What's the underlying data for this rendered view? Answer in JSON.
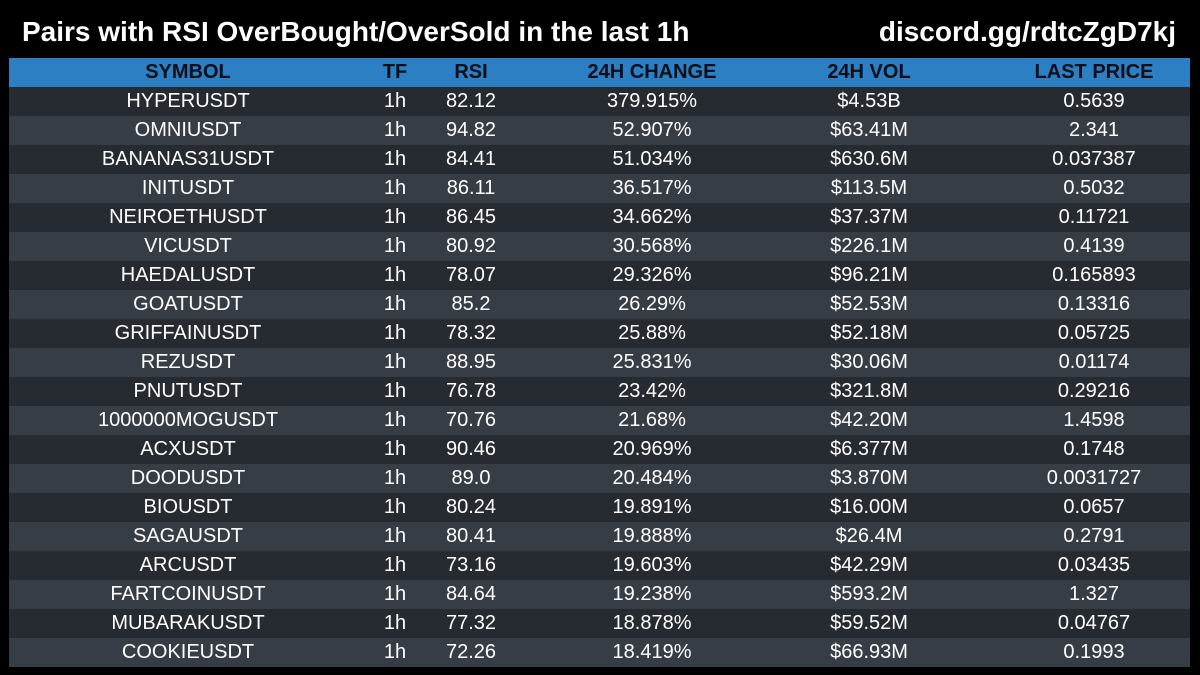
{
  "header": {
    "title": "Pairs with RSI OverBought/OverSold in the last 1h",
    "discord": "discord.gg/rdtcZgD7kj"
  },
  "table": {
    "columns": [
      "SYMBOL",
      "TF",
      "RSI",
      "24H CHANGE",
      "24H VOL",
      "LAST PRICE"
    ],
    "rows": [
      [
        "HYPERUSDT",
        "1h",
        "82.12",
        "379.915%",
        "$4.53B",
        "0.5639"
      ],
      [
        "OMNIUSDT",
        "1h",
        "94.82",
        "52.907%",
        "$63.41M",
        "2.341"
      ],
      [
        "BANANAS31USDT",
        "1h",
        "84.41",
        "51.034%",
        "$630.6M",
        "0.037387"
      ],
      [
        "INITUSDT",
        "1h",
        "86.11",
        "36.517%",
        "$113.5M",
        "0.5032"
      ],
      [
        "NEIROETHUSDT",
        "1h",
        "86.45",
        "34.662%",
        "$37.37M",
        "0.11721"
      ],
      [
        "VICUSDT",
        "1h",
        "80.92",
        "30.568%",
        "$226.1M",
        "0.4139"
      ],
      [
        "HAEDALUSDT",
        "1h",
        "78.07",
        "29.326%",
        "$96.21M",
        "0.165893"
      ],
      [
        "GOATUSDT",
        "1h",
        "85.2",
        "26.29%",
        "$52.53M",
        "0.13316"
      ],
      [
        "GRIFFAINUSDT",
        "1h",
        "78.32",
        "25.88%",
        "$52.18M",
        "0.05725"
      ],
      [
        "REZUSDT",
        "1h",
        "88.95",
        "25.831%",
        "$30.06M",
        "0.01174"
      ],
      [
        "PNUTUSDT",
        "1h",
        "76.78",
        "23.42%",
        "$321.8M",
        "0.29216"
      ],
      [
        "1000000MOGUSDT",
        "1h",
        "70.76",
        "21.68%",
        "$42.20M",
        "1.4598"
      ],
      [
        "ACXUSDT",
        "1h",
        "90.46",
        "20.969%",
        "$6.377M",
        "0.1748"
      ],
      [
        "DOODUSDT",
        "1h",
        "89.0",
        "20.484%",
        "$3.870M",
        "0.0031727"
      ],
      [
        "BIOUSDT",
        "1h",
        "80.24",
        "19.891%",
        "$16.00M",
        "0.0657"
      ],
      [
        "SAGAUSDT",
        "1h",
        "80.41",
        "19.888%",
        "$26.4M",
        "0.2791"
      ],
      [
        "ARCUSDT",
        "1h",
        "73.16",
        "19.603%",
        "$42.29M",
        "0.03435"
      ],
      [
        "FARTCOINUSDT",
        "1h",
        "84.64",
        "19.238%",
        "$593.2M",
        "1.327"
      ],
      [
        "MUBARAKUSDT",
        "1h",
        "77.32",
        "18.878%",
        "$59.52M",
        "0.04767"
      ],
      [
        "COOKIEUSDT",
        "1h",
        "72.26",
        "18.419%",
        "$66.93M",
        "0.1993"
      ]
    ]
  },
  "colors": {
    "background": "#000000",
    "header_row": "#2c7fc2",
    "row_dark": "#262b31",
    "row_light": "#373d45",
    "text": "#ffffff"
  }
}
